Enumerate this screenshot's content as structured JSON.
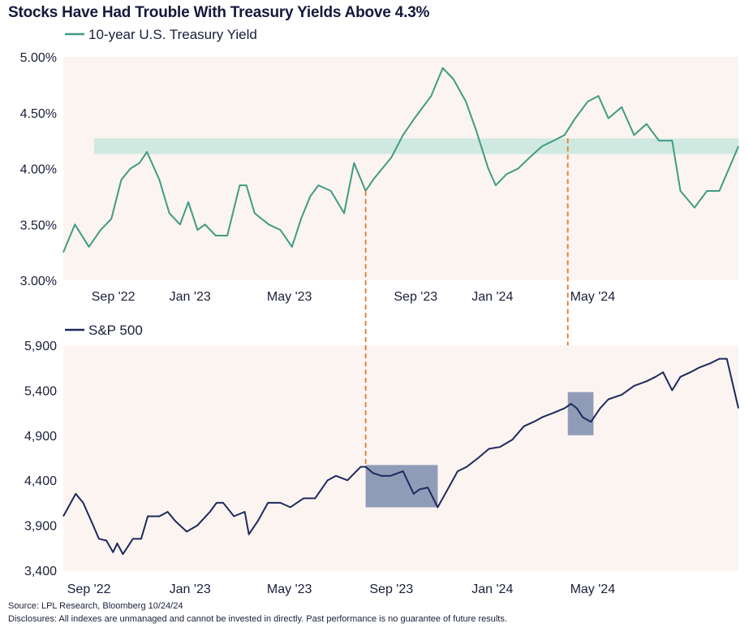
{
  "title": "Stocks Have Had Trouble With Treasury Yields Above 4.3%",
  "footer": {
    "source": "Source: LPL Research, Bloomberg 10/24/24",
    "disclosure": "Disclosures: All indexes are unmanaged and cannot be invested in directly. Past performance is no guarantee of future results."
  },
  "colors": {
    "plot_background": "#fcf4f1",
    "yield_line": "#3f9c84",
    "band": "#cfe9e1",
    "sp500_line": "#1c2a5c",
    "highlight_box": "#7d8cad",
    "dashed_line": "#e07a2c"
  },
  "chart_data": [
    {
      "type": "line",
      "legend": "10-year U.S. Treasury Yield",
      "legend_position": "top-left",
      "grid": false,
      "x_ticks": [
        "Sep '22",
        "Jan '23",
        "May '23",
        "Sep '23",
        "Jan '24",
        "May '24"
      ],
      "y_ticks": [
        "3.00%",
        "3.50%",
        "4.00%",
        "4.50%",
        "5.00%"
      ],
      "ylim": [
        3.0,
        5.0
      ],
      "xlim": [
        "2022-08-01",
        "2024-10-24"
      ],
      "band": {
        "from": 4.13,
        "to": 4.27
      },
      "series": [
        {
          "x": [
            "2022-08-01",
            "2022-08-15",
            "2022-09-01",
            "2022-09-15",
            "2022-09-28",
            "2022-10-10",
            "2022-10-21",
            "2022-11-01",
            "2022-11-10",
            "2022-11-25",
            "2022-12-07",
            "2022-12-20",
            "2022-12-30",
            "2023-01-10",
            "2023-01-19",
            "2023-02-01",
            "2023-02-15",
            "2023-03-02",
            "2023-03-10",
            "2023-03-20",
            "2023-04-06",
            "2023-04-20",
            "2023-05-04",
            "2023-05-15",
            "2023-05-26",
            "2023-06-05",
            "2023-06-20",
            "2023-07-06",
            "2023-07-18",
            "2023-08-01",
            "2023-08-10",
            "2023-08-21",
            "2023-09-01",
            "2023-09-15",
            "2023-09-29",
            "2023-10-09",
            "2023-10-19",
            "2023-11-02",
            "2023-11-15",
            "2023-11-30",
            "2023-12-12",
            "2023-12-27",
            "2024-01-05",
            "2024-01-18",
            "2024-02-01",
            "2024-02-15",
            "2024-03-01",
            "2024-03-15",
            "2024-03-28",
            "2024-04-10",
            "2024-04-25",
            "2024-05-08",
            "2024-05-20",
            "2024-06-05",
            "2024-06-20",
            "2024-07-05",
            "2024-07-20",
            "2024-08-05",
            "2024-08-15",
            "2024-09-01",
            "2024-09-16",
            "2024-10-01",
            "2024-10-24"
          ],
          "values": [
            3.25,
            3.5,
            3.3,
            3.45,
            3.55,
            3.9,
            4.0,
            4.05,
            4.15,
            3.9,
            3.6,
            3.5,
            3.7,
            3.45,
            3.5,
            3.4,
            3.4,
            3.85,
            3.85,
            3.6,
            3.5,
            3.45,
            3.3,
            3.55,
            3.75,
            3.85,
            3.8,
            3.6,
            4.05,
            3.8,
            3.9,
            4.0,
            4.1,
            4.3,
            4.45,
            4.55,
            4.65,
            4.9,
            4.8,
            4.6,
            4.35,
            4.0,
            3.85,
            3.95,
            4.0,
            4.1,
            4.2,
            4.25,
            4.3,
            4.45,
            4.6,
            4.65,
            4.45,
            4.55,
            4.3,
            4.4,
            4.25,
            4.25,
            3.8,
            3.65,
            3.8,
            3.8,
            4.2
          ]
        }
      ]
    },
    {
      "type": "line",
      "legend": "S&P 500",
      "legend_position": "top-left",
      "grid": false,
      "x_ticks": [
        "Sep '22",
        "Jan '23",
        "May '23",
        "Sep '23",
        "Jan '24",
        "May '24"
      ],
      "y_ticks": [
        "3,400",
        "3,900",
        "4,400",
        "4,900",
        "5,400",
        "5,900"
      ],
      "ylim": [
        3400,
        5900
      ],
      "xlim": [
        "2022-08-01",
        "2024-10-24"
      ],
      "highlights": [
        {
          "x": [
            "2023-08-01",
            "2023-10-27"
          ],
          "y": [
            4100,
            4570
          ]
        },
        {
          "x": [
            "2024-04-01",
            "2024-05-02"
          ],
          "y": [
            4900,
            5380
          ]
        }
      ],
      "markers": [
        "2023-08-01",
        "2024-04-01"
      ],
      "series": [
        {
          "x": [
            "2022-08-01",
            "2022-08-10",
            "2022-08-16",
            "2022-08-25",
            "2022-09-06",
            "2022-09-13",
            "2022-09-22",
            "2022-09-30",
            "2022-10-05",
            "2022-10-12",
            "2022-10-24",
            "2022-11-03",
            "2022-11-11",
            "2022-11-25",
            "2022-12-05",
            "2022-12-14",
            "2022-12-28",
            "2023-01-10",
            "2023-01-25",
            "2023-02-02",
            "2023-02-10",
            "2023-02-23",
            "2023-03-08",
            "2023-03-13",
            "2023-03-24",
            "2023-04-05",
            "2023-04-20",
            "2023-05-02",
            "2023-05-18",
            "2023-06-01",
            "2023-06-16",
            "2023-06-26",
            "2023-07-10",
            "2023-07-26",
            "2023-08-01",
            "2023-08-10",
            "2023-08-20",
            "2023-08-31",
            "2023-09-15",
            "2023-09-28",
            "2023-10-05",
            "2023-10-15",
            "2023-10-27",
            "2023-11-08",
            "2023-11-20",
            "2023-12-01",
            "2023-12-15",
            "2023-12-28",
            "2024-01-10",
            "2024-01-25",
            "2024-02-08",
            "2024-02-20",
            "2024-03-01",
            "2024-03-15",
            "2024-03-28",
            "2024-04-05",
            "2024-04-12",
            "2024-04-19",
            "2024-04-29",
            "2024-05-10",
            "2024-05-20",
            "2024-06-05",
            "2024-06-20",
            "2024-07-05",
            "2024-07-16",
            "2024-07-25",
            "2024-08-05",
            "2024-08-15",
            "2024-08-27",
            "2024-09-06",
            "2024-09-20",
            "2024-10-01",
            "2024-10-10",
            "2024-10-24"
          ],
          "values": [
            4000,
            4150,
            4250,
            4150,
            3900,
            3750,
            3730,
            3600,
            3700,
            3580,
            3750,
            3750,
            4000,
            4000,
            4050,
            3950,
            3830,
            3900,
            4050,
            4150,
            4150,
            4000,
            4050,
            3800,
            3950,
            4150,
            4150,
            4100,
            4200,
            4200,
            4400,
            4450,
            4400,
            4550,
            4550,
            4480,
            4450,
            4450,
            4500,
            4250,
            4300,
            4320,
            4100,
            4300,
            4500,
            4550,
            4650,
            4750,
            4770,
            4850,
            5000,
            5050,
            5100,
            5150,
            5200,
            5250,
            5200,
            5100,
            5050,
            5200,
            5300,
            5350,
            5450,
            5500,
            5550,
            5600,
            5400,
            5550,
            5600,
            5650,
            5700,
            5750,
            5750,
            5200
          ]
        }
      ]
    }
  ]
}
